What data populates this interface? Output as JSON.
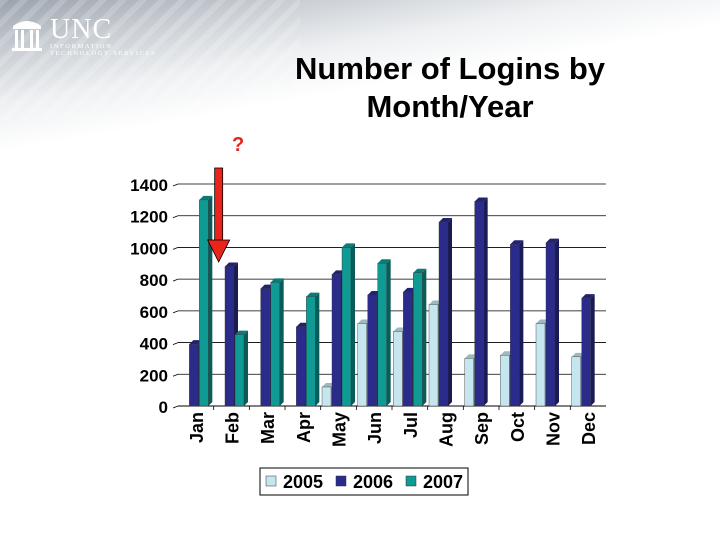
{
  "header": {
    "logo_word": "UNC",
    "logo_line1": "INFORMATION",
    "logo_line2": "TECHNOLOGY SERVICES"
  },
  "annotation": {
    "question_mark": "?"
  },
  "colors": {
    "2005": "#c6e6ef",
    "2006": "#2b2b8c",
    "2007": "#0f9a94",
    "arrow": "#e8241b"
  },
  "chart_data": {
    "type": "bar",
    "title_lines": [
      "Number of Logins by",
      "Month/Year"
    ],
    "categories": [
      "Jan",
      "Feb",
      "Mar",
      "Apr",
      "May",
      "Jun",
      "Jul",
      "Aug",
      "Sep",
      "Oct",
      "Nov",
      "Dec"
    ],
    "series": [
      {
        "name": "2005",
        "values": [
          0,
          0,
          0,
          0,
          120,
          520,
          470,
          640,
          300,
          320,
          520,
          310
        ]
      },
      {
        "name": "2006",
        "values": [
          390,
          880,
          740,
          500,
          830,
          700,
          720,
          1160,
          1290,
          1020,
          1030,
          680
        ]
      },
      {
        "name": "2007",
        "values": [
          1300,
          450,
          780,
          690,
          1000,
          900,
          840,
          null,
          null,
          null,
          null,
          null
        ]
      }
    ],
    "y_ticks": [
      0,
      200,
      400,
      600,
      800,
      1000,
      1200,
      1400
    ],
    "ylim": [
      0,
      1400
    ],
    "grid": true,
    "legend_position": "bottom",
    "annotation_arrow_category": "Feb"
  }
}
